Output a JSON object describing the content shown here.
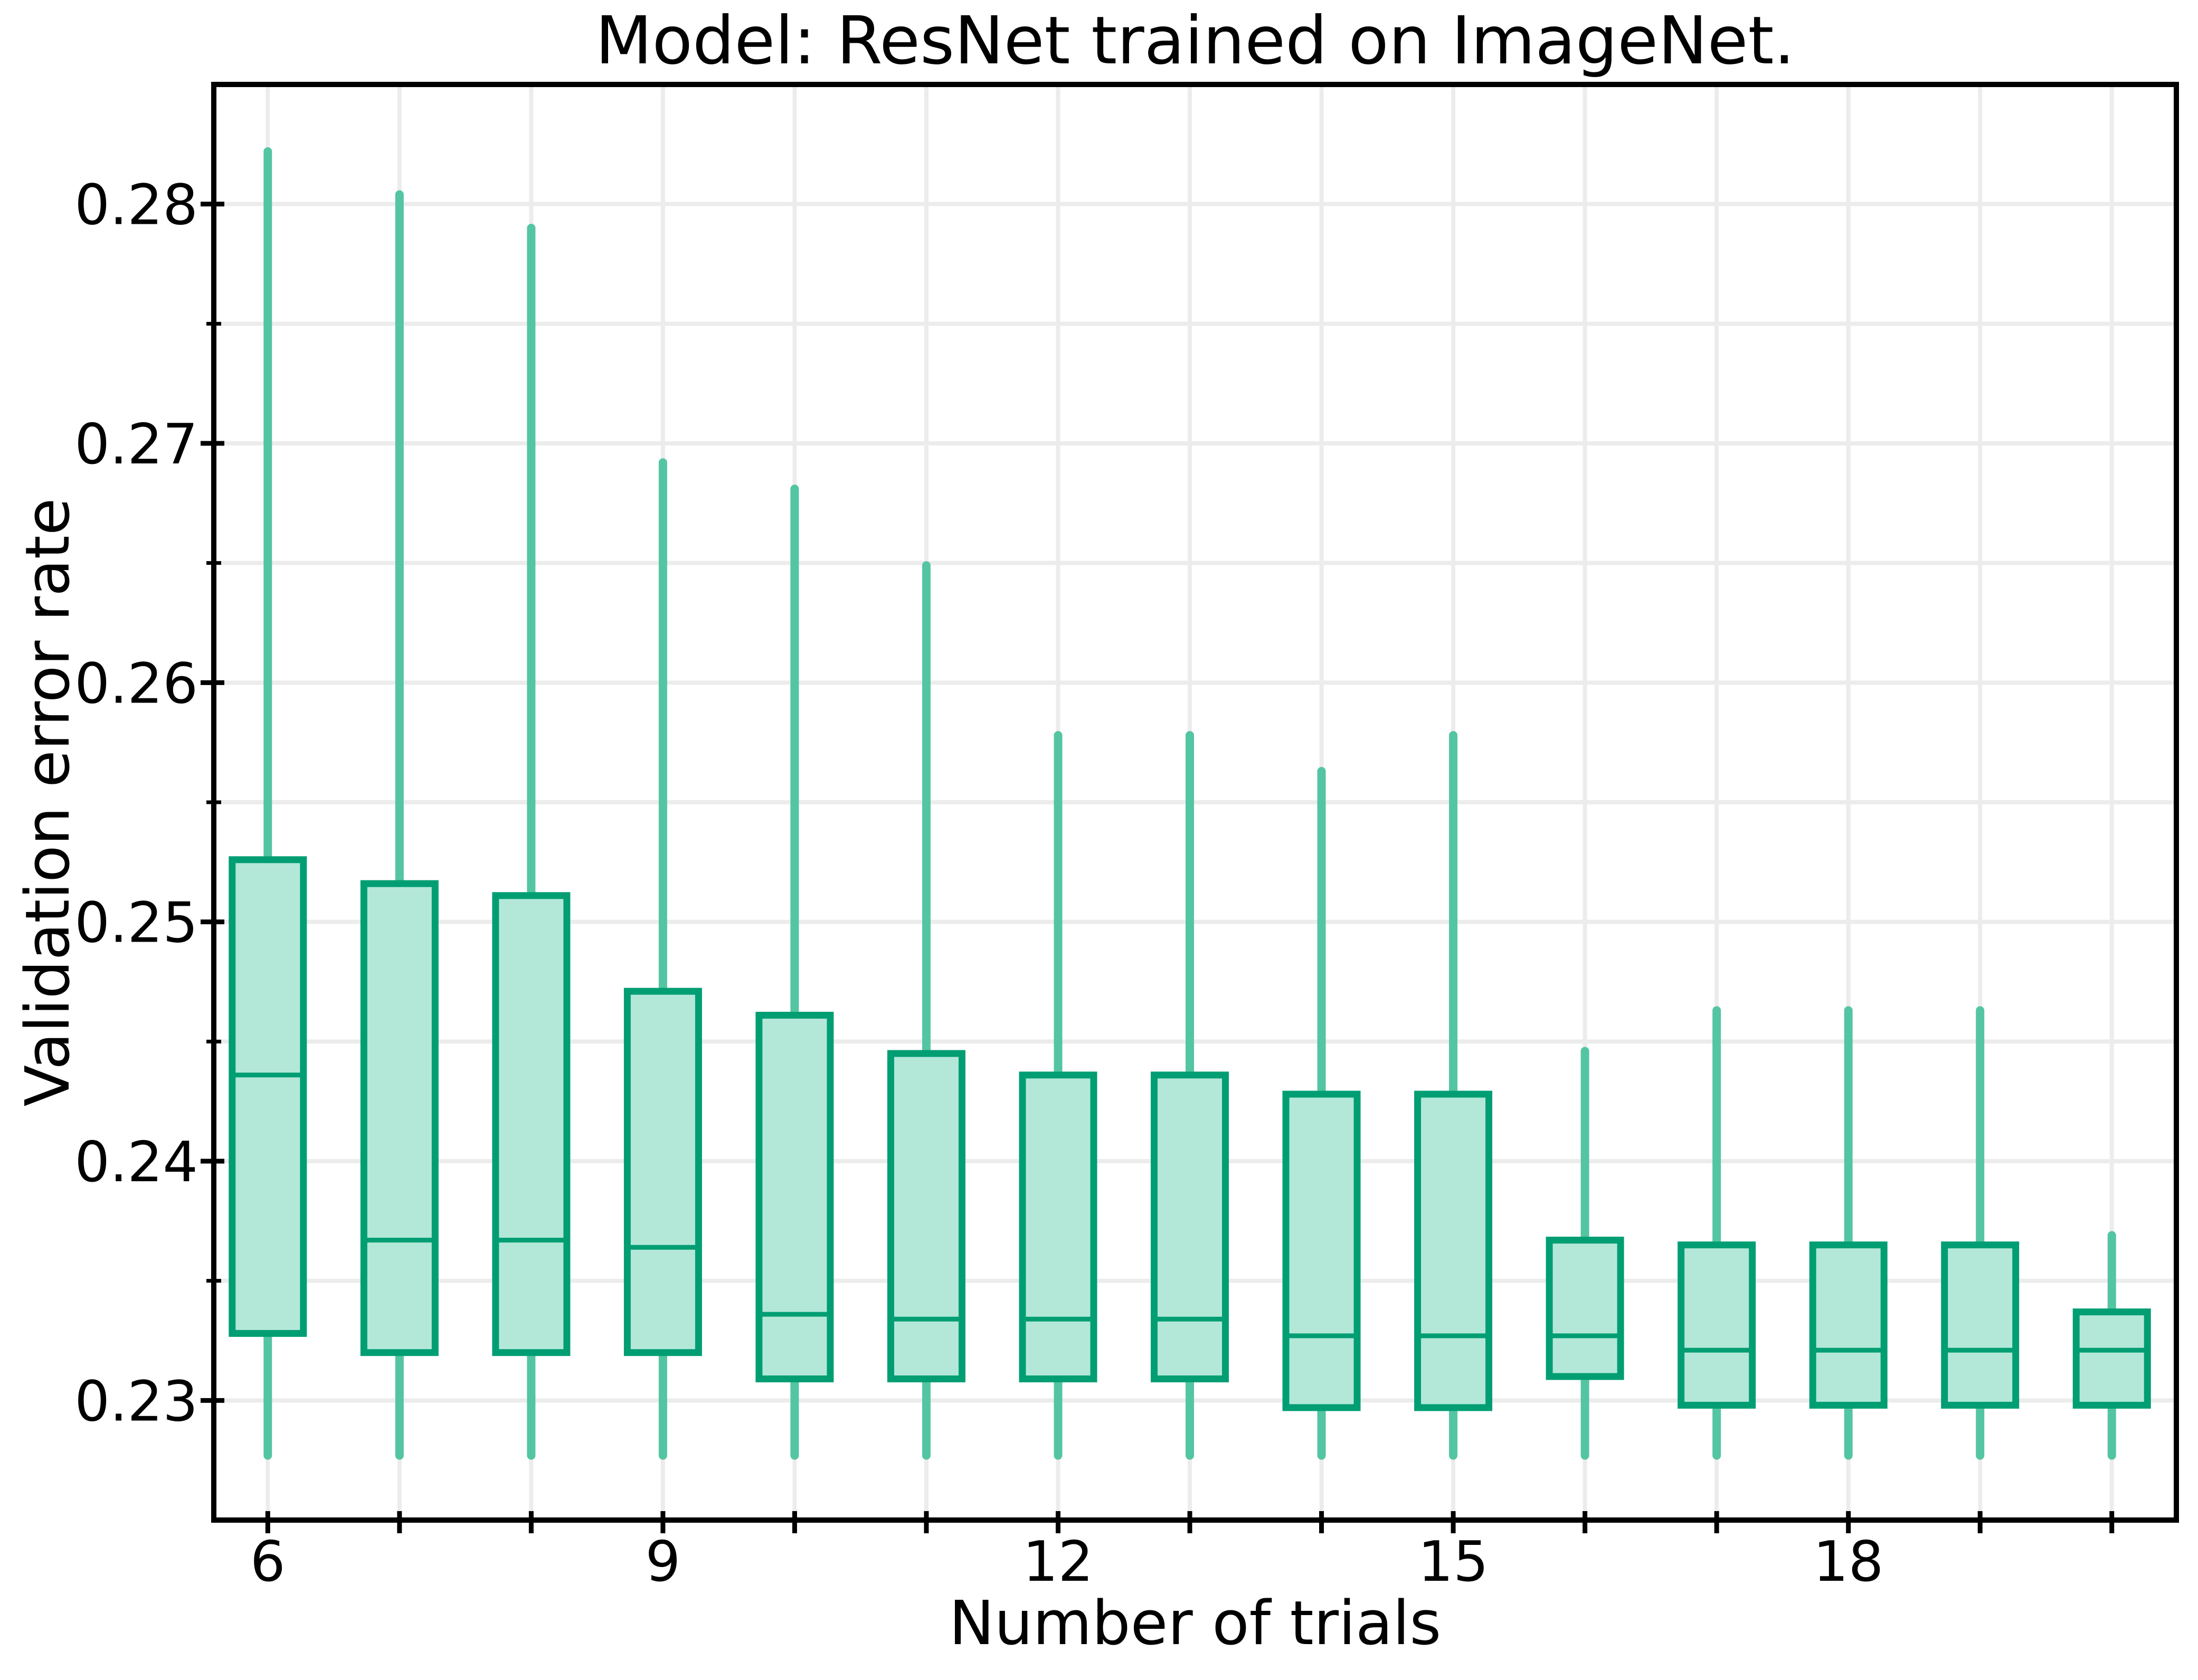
{
  "chart_data": {
    "type": "box",
    "title": "Model: ResNet trained on ImageNet.",
    "xlabel": "Number of trials",
    "ylabel": "Validation error rate",
    "ylim": [
      0.225,
      0.285
    ],
    "xlim": [
      5.59,
      20.49
    ],
    "grid": true,
    "legend": false,
    "yticks_major": [
      {
        "v": 0.23,
        "label": "0.23"
      },
      {
        "v": 0.24,
        "label": "0.24"
      },
      {
        "v": 0.25,
        "label": "0.25"
      },
      {
        "v": 0.26,
        "label": "0.26"
      },
      {
        "v": 0.27,
        "label": "0.27"
      },
      {
        "v": 0.28,
        "label": "0.28"
      }
    ],
    "yticks_minor": [
      0.235,
      0.245,
      0.255,
      0.265,
      0.275
    ],
    "ygrid": [
      0.23,
      0.235,
      0.24,
      0.245,
      0.25,
      0.255,
      0.26,
      0.265,
      0.27,
      0.275,
      0.28
    ],
    "xticks_labeled": [
      {
        "x": 6,
        "label": "6"
      },
      {
        "x": 9,
        "label": "9"
      },
      {
        "x": 12,
        "label": "12"
      },
      {
        "x": 15,
        "label": "15"
      },
      {
        "x": 18,
        "label": "18"
      }
    ],
    "boxes": [
      {
        "x": 6,
        "whislo": 0.2277,
        "q1": 0.2328,
        "med": 0.2436,
        "q3": 0.2526,
        "whishi": 0.2822
      },
      {
        "x": 7,
        "whislo": 0.2277,
        "q1": 0.232,
        "med": 0.2367,
        "q3": 0.2516,
        "whishi": 0.2804
      },
      {
        "x": 8,
        "whislo": 0.2277,
        "q1": 0.232,
        "med": 0.2367,
        "q3": 0.2511,
        "whishi": 0.279
      },
      {
        "x": 9,
        "whislo": 0.2277,
        "q1": 0.232,
        "med": 0.2364,
        "q3": 0.2471,
        "whishi": 0.2692
      },
      {
        "x": 10,
        "whislo": 0.2277,
        "q1": 0.2309,
        "med": 0.2336,
        "q3": 0.2461,
        "whishi": 0.2681
      },
      {
        "x": 11,
        "whislo": 0.2277,
        "q1": 0.2309,
        "med": 0.2334,
        "q3": 0.2445,
        "whishi": 0.2649
      },
      {
        "x": 12,
        "whislo": 0.2277,
        "q1": 0.2309,
        "med": 0.2334,
        "q3": 0.2436,
        "whishi": 0.2578
      },
      {
        "x": 13,
        "whislo": 0.2277,
        "q1": 0.2309,
        "med": 0.2334,
        "q3": 0.2436,
        "whishi": 0.2578
      },
      {
        "x": 14,
        "whislo": 0.2277,
        "q1": 0.2297,
        "med": 0.2327,
        "q3": 0.2428,
        "whishi": 0.2563
      },
      {
        "x": 15,
        "whislo": 0.2277,
        "q1": 0.2297,
        "med": 0.2327,
        "q3": 0.2428,
        "whishi": 0.2578
      },
      {
        "x": 16,
        "whislo": 0.2277,
        "q1": 0.231,
        "med": 0.2327,
        "q3": 0.2367,
        "whishi": 0.2446
      },
      {
        "x": 17,
        "whislo": 0.2277,
        "q1": 0.2298,
        "med": 0.2321,
        "q3": 0.2365,
        "whishi": 0.2463
      },
      {
        "x": 18,
        "whislo": 0.2277,
        "q1": 0.2298,
        "med": 0.2321,
        "q3": 0.2365,
        "whishi": 0.2463
      },
      {
        "x": 19,
        "whislo": 0.2277,
        "q1": 0.2298,
        "med": 0.2321,
        "q3": 0.2365,
        "whishi": 0.2463
      },
      {
        "x": 20,
        "whislo": 0.2277,
        "q1": 0.2298,
        "med": 0.2321,
        "q3": 0.2337,
        "whishi": 0.2369
      }
    ],
    "colors": {
      "box_fill": "#B3E8D9",
      "box_edge": "#029E73",
      "median": "#029E73",
      "whisker": "#54C5A2",
      "grid": "#ECECEC",
      "spine": "#000000",
      "text": "#000000",
      "background": "#FFFFFF"
    }
  }
}
